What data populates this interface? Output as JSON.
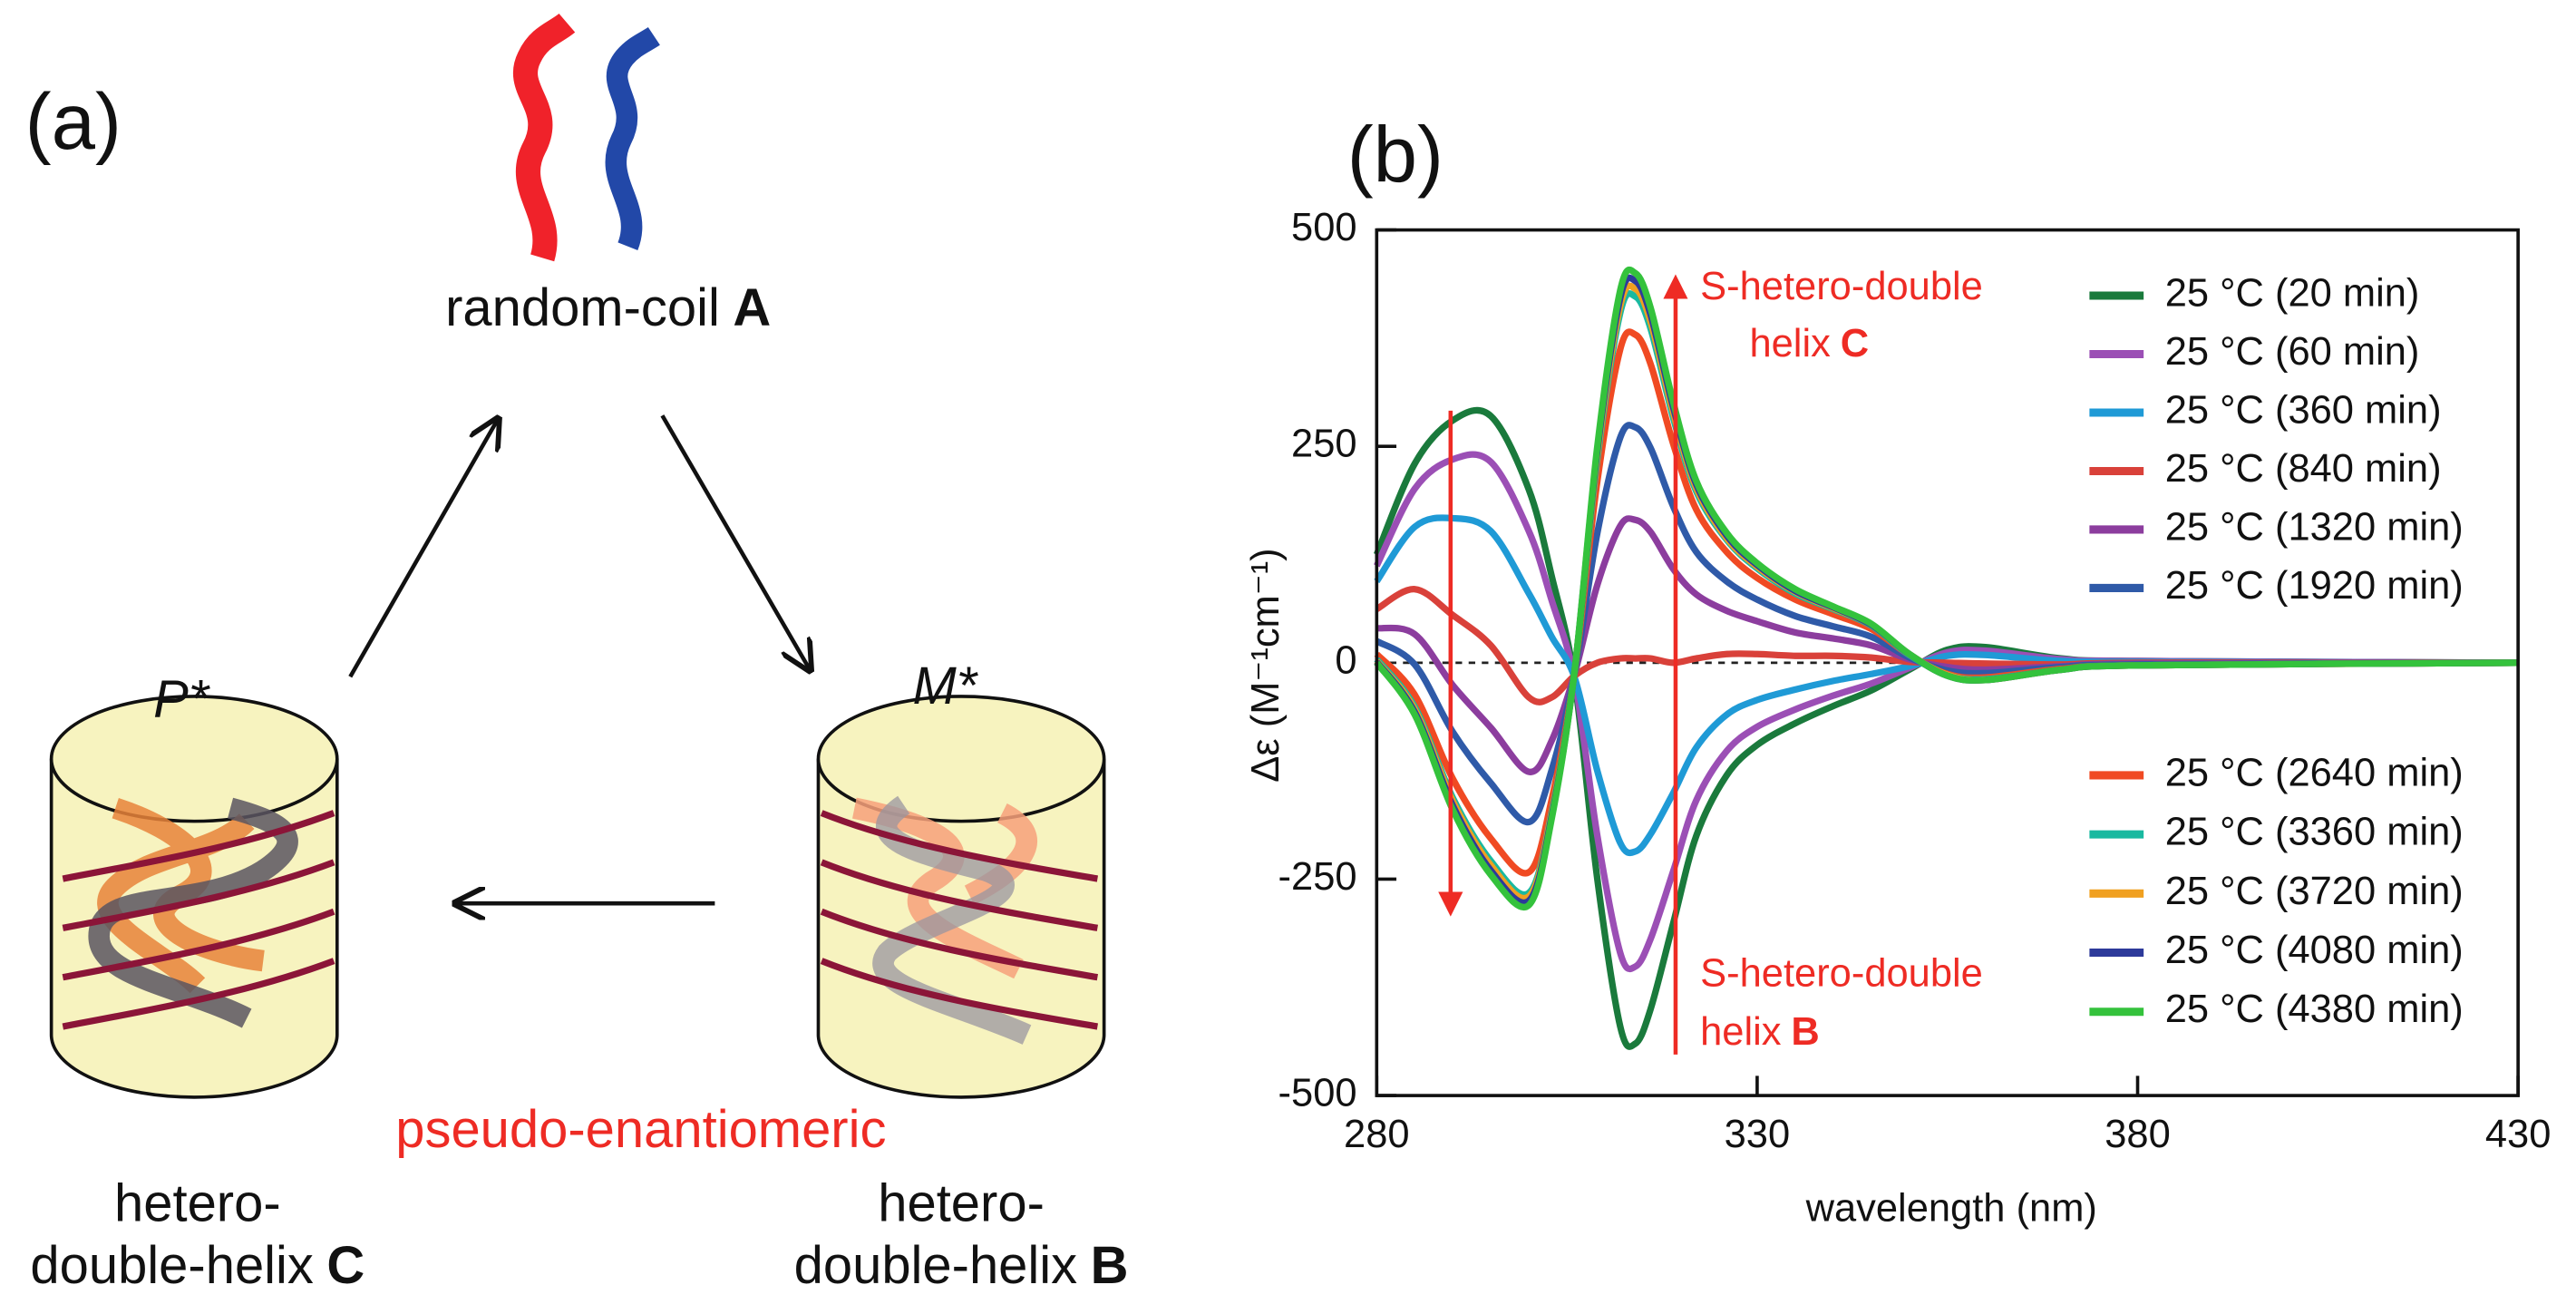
{
  "panel_a": {
    "label": "(a)",
    "top": {
      "text": "random-coil",
      "bold": "A"
    },
    "left": {
      "handedness": "P*",
      "line1": "hetero-",
      "line2": "double-helix",
      "bold": "C"
    },
    "right": {
      "handedness": "M*",
      "line1": "hetero-",
      "line2": "double-helix",
      "bold": "B"
    },
    "relation": "pseudo-enantiomeric"
  },
  "chart_data": {
    "type": "line",
    "panel_label": "(b)",
    "xlabel": "wavelength (nm)",
    "ylabel": "Δε (M⁻¹cm⁻¹)",
    "xlim": [
      280,
      430
    ],
    "xticks": [
      280,
      330,
      380,
      430
    ],
    "ylim": [
      -500,
      500
    ],
    "yticks": [
      -500,
      -250,
      0,
      250,
      500
    ],
    "annotations": [
      {
        "line1": "S-hetero-double",
        "line2": "helix",
        "bold": "C",
        "color": "#ee2b24"
      },
      {
        "line1": "S-hetero-double",
        "line2": "helix",
        "bold": "B",
        "color": "#ee2b24"
      }
    ],
    "x": [
      280,
      285,
      290,
      295,
      300,
      303,
      306,
      309,
      312,
      314,
      316,
      319,
      322,
      326,
      330,
      335,
      340,
      345,
      350,
      355,
      360,
      370,
      380,
      430
    ],
    "series": [
      {
        "name": "25 °C (20 min)",
        "color": "#1a7a3c",
        "values": [
          125,
          230,
          280,
          285,
          200,
          100,
          -20,
          -250,
          -420,
          -440,
          -400,
          -300,
          -200,
          -130,
          -95,
          -70,
          -50,
          -32,
          -8,
          15,
          18,
          5,
          2,
          0
        ]
      },
      {
        "name": "25 °C (60 min)",
        "color": "#9b4fb5",
        "values": [
          112,
          201,
          235,
          232,
          152,
          72,
          -19,
          -200,
          -335,
          -351,
          -319,
          -240,
          -159,
          -102,
          -74,
          -54,
          -38,
          -24,
          -6,
          12,
          14,
          4,
          2,
          0
        ]
      },
      {
        "name": "25 °C (360 min)",
        "color": "#1f9ad6",
        "values": [
          94,
          157,
          167,
          152,
          80,
          30,
          -17,
          -125,
          -208,
          -218,
          -198,
          -150,
          -98,
          -60,
          -43,
          -31,
          -21,
          -13,
          -4,
          8,
          9,
          2,
          1,
          0
        ]
      },
      {
        "name": "25 °C (840 min)",
        "color": "#d9413a",
        "values": [
          62,
          85,
          55,
          20,
          -40,
          -40,
          -15,
          0,
          5,
          5,
          5,
          0,
          5,
          10,
          10,
          8,
          8,
          6,
          1,
          0,
          -1,
          -2,
          0,
          0
        ]
      },
      {
        "name": "25 °C (1320 min)",
        "color": "#8c3d9e",
        "values": [
          40,
          33,
          -26,
          -75,
          -126,
          -90,
          -13,
          90,
          158,
          165,
          151,
          108,
          79,
          60,
          48,
          35,
          28,
          20,
          4,
          -5,
          -8,
          -4,
          -1,
          0
        ]
      },
      {
        "name": "25 °C (1920 min)",
        "color": "#2f5aa8",
        "values": [
          25,
          -2,
          -80,
          -139,
          -184,
          -124,
          -12,
          150,
          260,
          272,
          248,
          180,
          128,
          94,
          73,
          54,
          42,
          30,
          6,
          -9,
          -12,
          -5,
          -2,
          0
        ]
      },
      {
        "name": "25 °C (2640 min)",
        "color": "#f04a23",
        "values": [
          10,
          -37,
          -134,
          -203,
          -242,
          -158,
          -11,
          210,
          362,
          379,
          345,
          252,
          177,
          128,
          98,
          73,
          56,
          39,
          9,
          -13,
          -17,
          -7,
          -3,
          0
        ]
      },
      {
        "name": "25 °C (3360 min)",
        "color": "#19b9a0",
        "values": [
          4,
          -51,
          -156,
          -229,
          -266,
          -172,
          -10,
          235,
          404,
          423,
          386,
          282,
          198,
          142,
          109,
          80,
          62,
          43,
          9,
          -14,
          -19,
          -8,
          -3,
          0
        ]
      },
      {
        "name": "25 °C (3720 min)",
        "color": "#f0a020",
        "values": [
          2,
          -54,
          -160,
          -234,
          -270,
          -174,
          -10,
          240,
          412,
          432,
          394,
          288,
          202,
          144,
          111,
          82,
          63,
          44,
          10,
          -14,
          -20,
          -8,
          -3,
          0
        ]
      },
      {
        "name": "25 °C (4080 min)",
        "color": "#2d3a9a",
        "values": [
          1,
          -57,
          -165,
          -240,
          -275,
          -177,
          -10,
          245,
          421,
          441,
          402,
          294,
          206,
          147,
          113,
          83,
          64,
          44,
          10,
          -15,
          -20,
          -8,
          -3,
          0
        ]
      },
      {
        "name": "25 °C (4380 min)",
        "color": "#34c23c",
        "values": [
          0,
          -60,
          -170,
          -245,
          -280,
          -180,
          -10,
          250,
          430,
          450,
          410,
          300,
          210,
          150,
          115,
          85,
          65,
          45,
          10,
          -15,
          -20,
          -8,
          -3,
          0
        ]
      }
    ]
  }
}
